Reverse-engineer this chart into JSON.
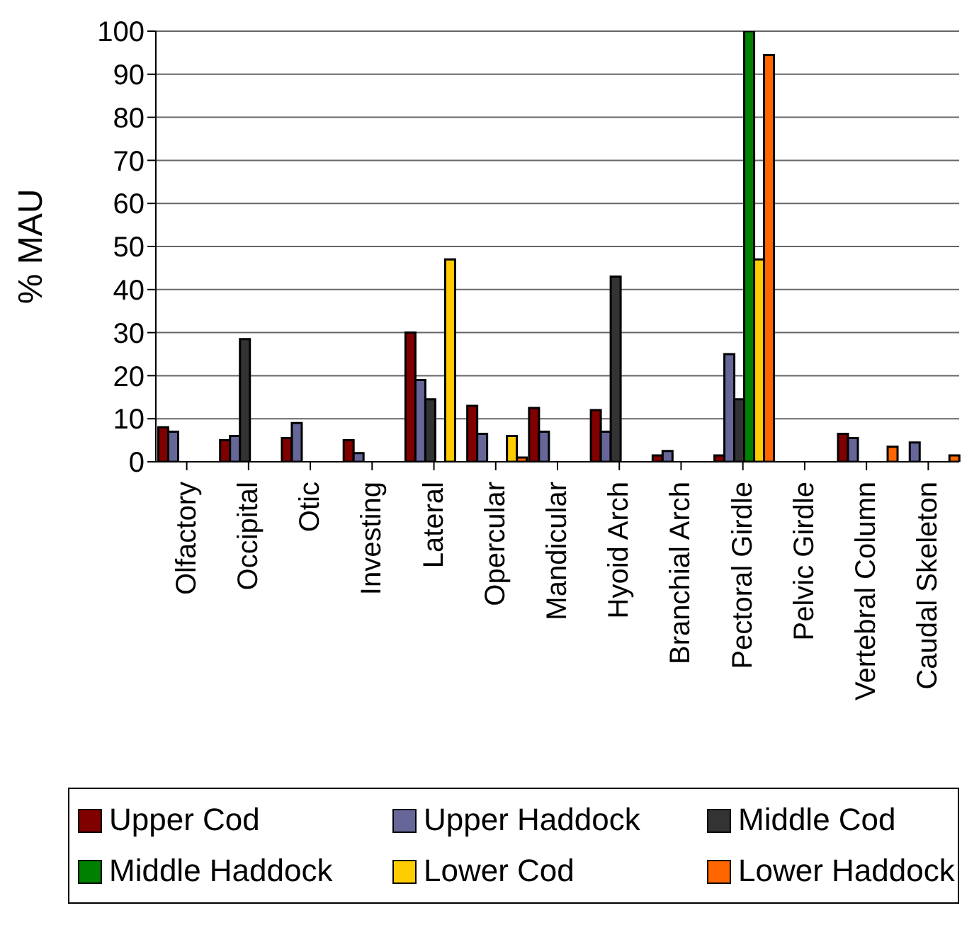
{
  "chart_data": {
    "type": "bar",
    "ylabel": "% MAU",
    "categories": [
      "Olfactory",
      "Occipital",
      "Otic",
      "Investing",
      "Lateral",
      "Opercular",
      "Mandicular",
      "Hyoid Arch",
      "Branchial Arch",
      "Pectoral Girdle",
      "Pelvic Girdle",
      "Vertebral Column",
      "Caudal Skeleton"
    ],
    "series": [
      {
        "name": "Upper Cod",
        "color": "#800000",
        "values": [
          8,
          5,
          5.5,
          5,
          30,
          13,
          12.5,
          12,
          1.5,
          1.5,
          0,
          6.5,
          0
        ]
      },
      {
        "name": "Upper Haddock",
        "color": "#666699",
        "values": [
          7,
          6,
          9,
          2,
          19,
          6.5,
          7,
          7,
          2.5,
          25,
          0,
          5.5,
          4.5
        ]
      },
      {
        "name": "Middle Cod",
        "color": "#333333",
        "values": [
          0,
          28.5,
          0,
          0,
          14.5,
          0,
          0,
          43,
          0,
          14.5,
          0,
          0,
          0
        ]
      },
      {
        "name": "Middle Haddock",
        "color": "#008000",
        "values": [
          0,
          0,
          0,
          0,
          0,
          0,
          0,
          0,
          0,
          100,
          0,
          0,
          0
        ]
      },
      {
        "name": "Lower Cod",
        "color": "#ffcc00",
        "values": [
          0,
          0,
          0,
          0,
          47,
          6,
          0,
          0,
          0,
          47,
          0,
          0,
          0
        ]
      },
      {
        "name": "Lower Haddock",
        "color": "#ff6600",
        "values": [
          0,
          0,
          0,
          0,
          0,
          1,
          0,
          0,
          0,
          94.5,
          0,
          3.5,
          1.5
        ]
      }
    ],
    "ylim": [
      0,
      100
    ],
    "yticks": [
      0,
      10,
      20,
      30,
      40,
      50,
      60,
      70,
      80,
      90,
      100
    ],
    "grid": "y",
    "legend": "bottom"
  }
}
